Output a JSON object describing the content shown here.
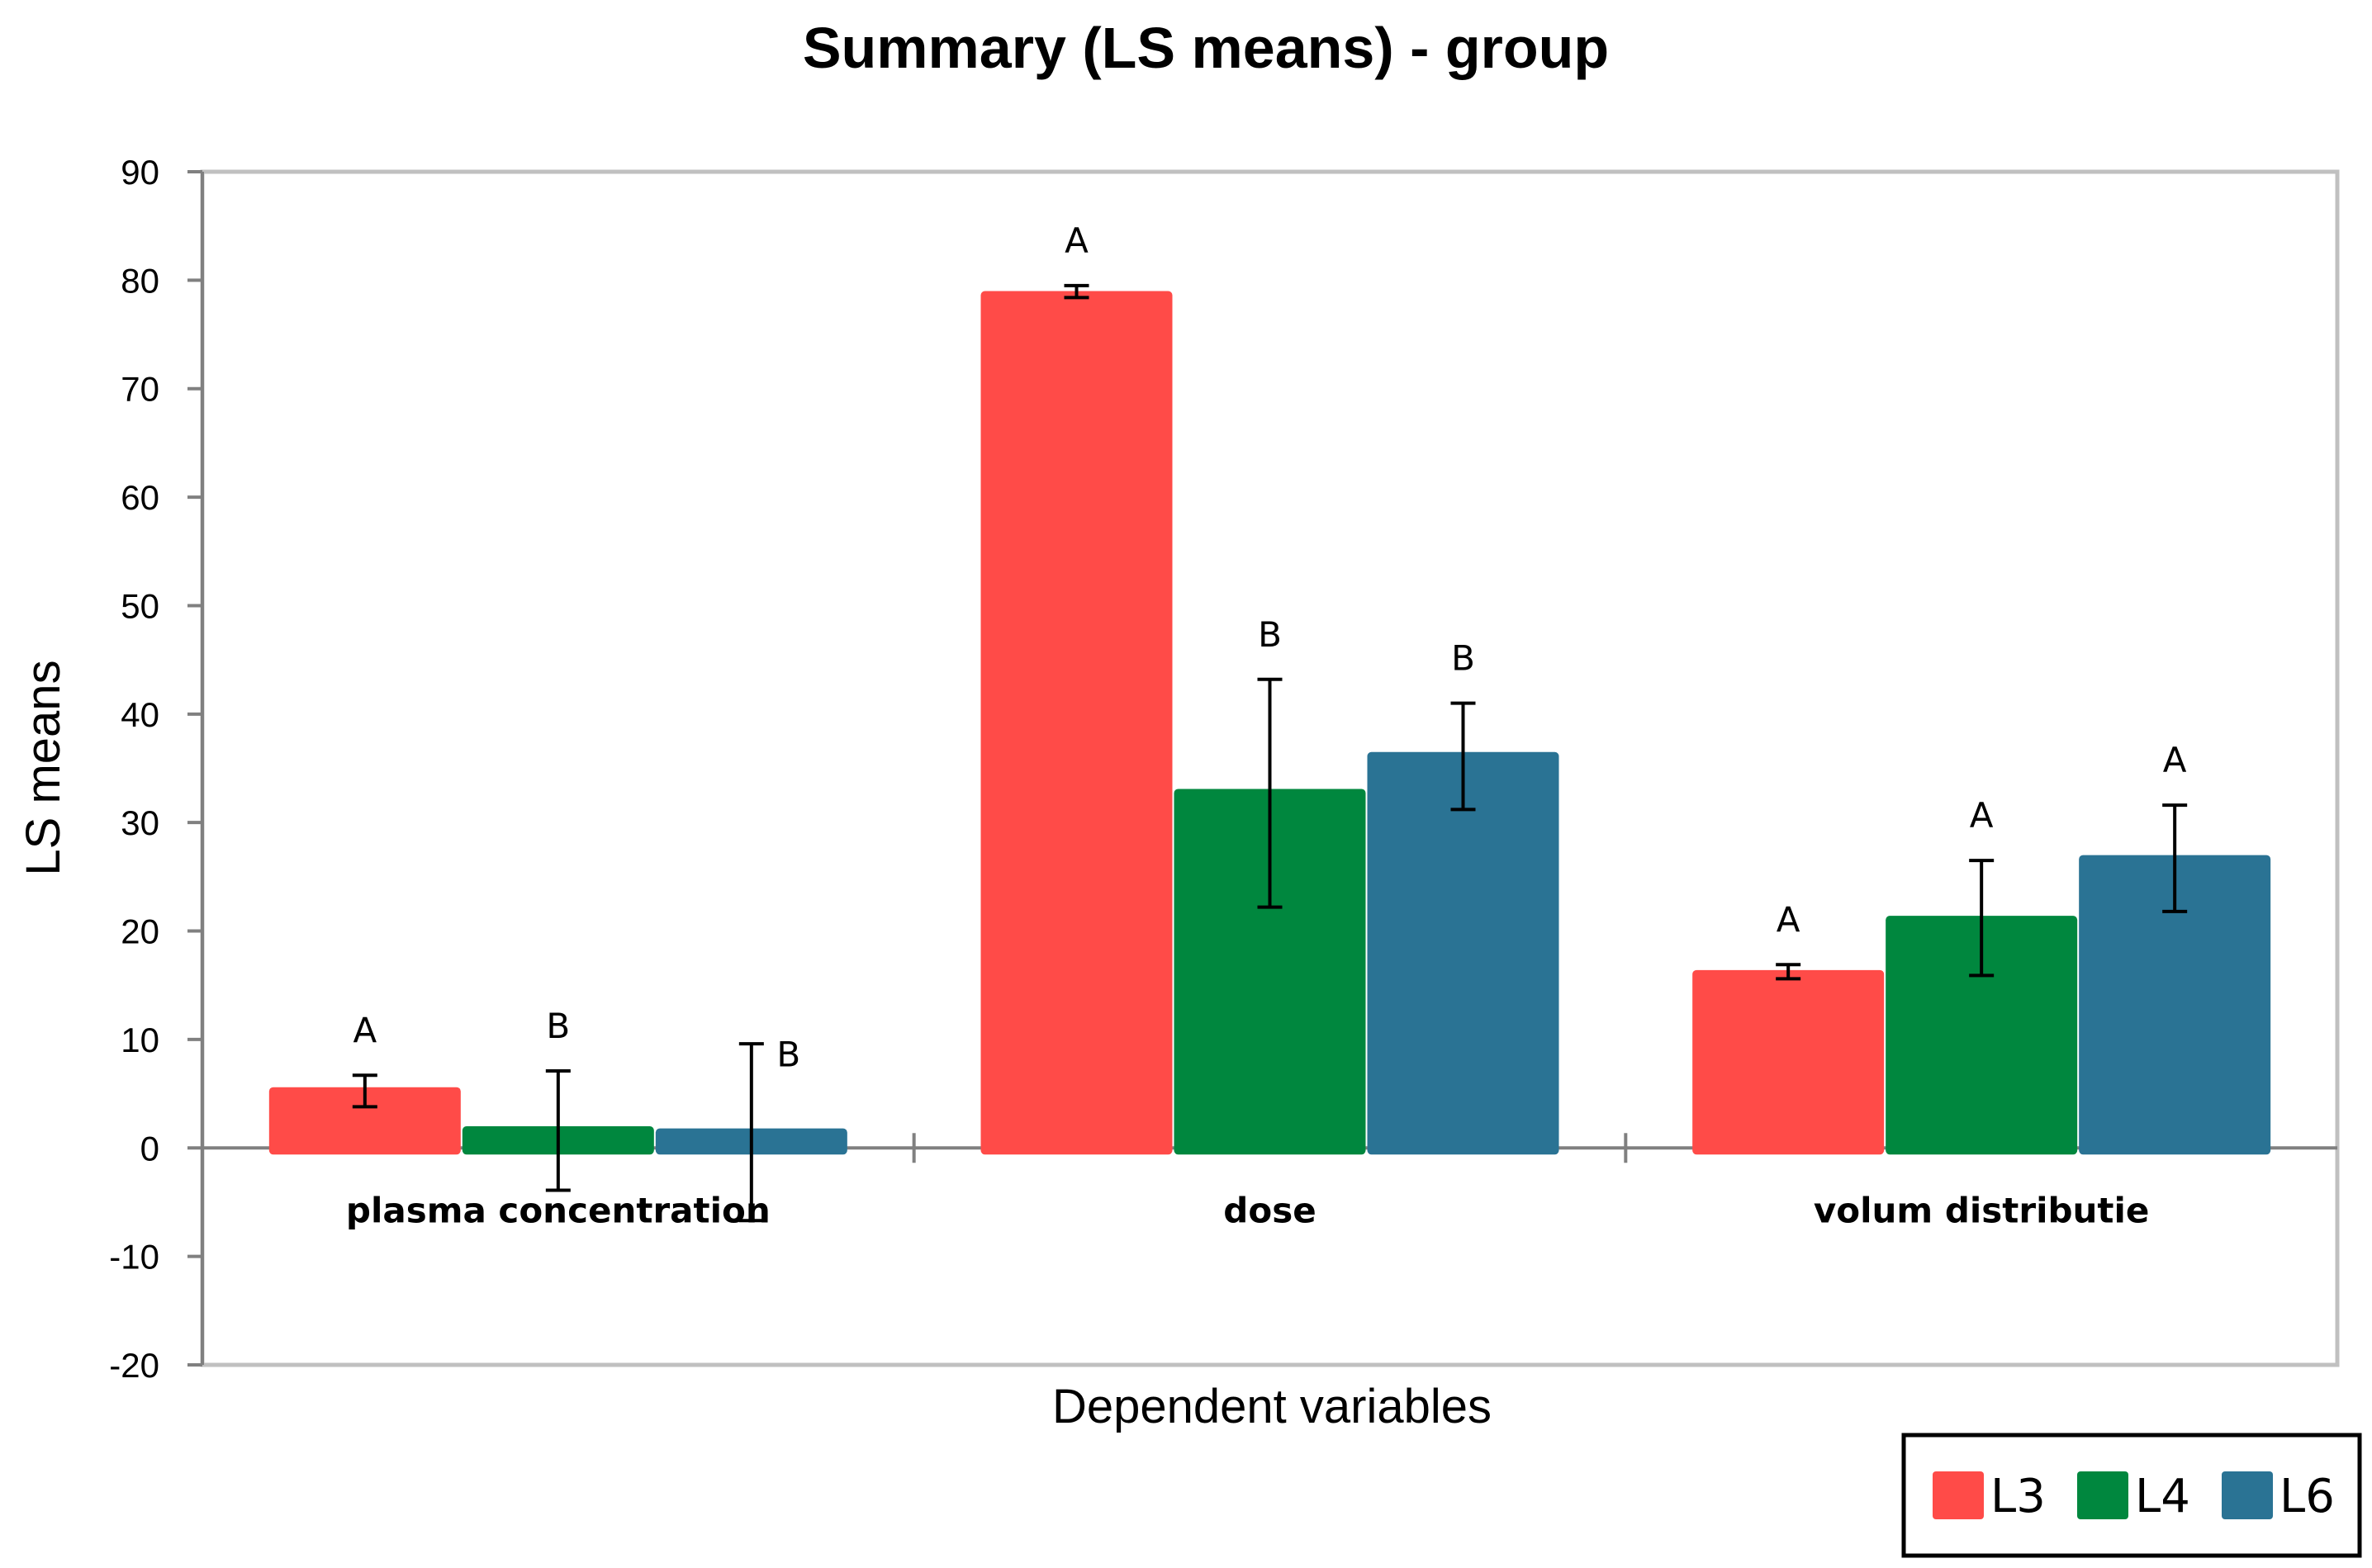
{
  "chart_data": {
    "type": "bar",
    "title": "Summary (LS means) - group",
    "xlabel": "Dependent variables",
    "ylabel": "LS means",
    "ylim": [
      -20,
      90
    ],
    "yticks": [
      90,
      80,
      70,
      60,
      50,
      40,
      30,
      20,
      10,
      0,
      -10,
      -20
    ],
    "categories": [
      "plasma concentration",
      "dose",
      "volum distributie"
    ],
    "series": [
      {
        "name": "L3",
        "color": "#ff4b48",
        "values": [
          5.6,
          79.0,
          16.4
        ],
        "err_low": [
          3.8,
          78.4,
          15.6
        ],
        "err_high": [
          6.7,
          79.5,
          16.9
        ],
        "letters": [
          "A",
          "A",
          "A"
        ]
      },
      {
        "name": "L4",
        "color": "#00873e",
        "values": [
          2.0,
          33.1,
          21.4
        ],
        "err_low": [
          -3.9,
          22.2,
          15.9
        ],
        "err_high": [
          7.1,
          43.2,
          26.5
        ],
        "letters": [
          "B",
          "B",
          "A"
        ]
      },
      {
        "name": "L6",
        "color": "#2a7394",
        "values": [
          1.8,
          36.5,
          27.0
        ],
        "err_low": [
          -6.7,
          31.2,
          21.8
        ],
        "err_high": [
          9.6,
          41.0,
          31.6
        ],
        "letters": [
          "B",
          "B",
          "A"
        ]
      }
    ],
    "legend": {
      "position": "bottom-right",
      "items": [
        "L3",
        "L4",
        "L6"
      ]
    }
  }
}
